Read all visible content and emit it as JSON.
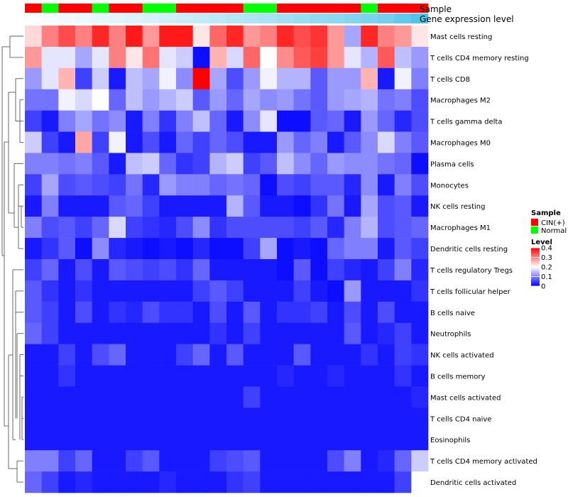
{
  "chart_data": {
    "type": "heatmap",
    "title": "",
    "annotation_tracks": [
      {
        "name": "Sample",
        "values": [
          "CIN(+)",
          "Normal",
          "CIN(+)",
          "CIN(+)",
          "Normal",
          "CIN(+)",
          "CIN(+)",
          "Normal",
          "Normal",
          "CIN(+)",
          "CIN(+)",
          "CIN(+)",
          "CIN(+)",
          "Normal",
          "Normal",
          "CIN(+)",
          "CIN(+)",
          "CIN(+)",
          "CIN(+)",
          "CIN(+)",
          "Normal",
          "CIN(+)",
          "CIN(+)",
          "CIN(+)"
        ]
      },
      {
        "name": "Gene expression level",
        "values": [
          0.02,
          0.05,
          0.08,
          0.11,
          0.14,
          0.17,
          0.2,
          0.23,
          0.27,
          0.3,
          0.34,
          0.38,
          0.42,
          0.46,
          0.5,
          0.54,
          0.58,
          0.62,
          0.66,
          0.7,
          0.75,
          0.8,
          0.9,
          1.0
        ]
      }
    ],
    "rows": [
      "Mast cells resting",
      "T cells CD4 memory resting",
      "T cells CD8",
      "Macrophages M2",
      "T cells gamma delta",
      "Macrophages M0",
      "Plasma cells",
      "Monocytes",
      "NK cells resting",
      "Macrophages M1",
      "Dendritic cells resting",
      "T cells regulatory  Tregs",
      "T cells follicular helper",
      "B cells naive",
      "Neutrophils",
      "NK cells activated",
      "B cells memory",
      "Mast cells activated",
      "T cells CD4 naive",
      "Eosinophils",
      "T cells CD4 memory activated",
      "Dendritic cells activated"
    ],
    "values": [
      [
        0.23,
        0.3,
        0.34,
        0.3,
        0.37,
        0.3,
        0.38,
        0.28,
        0.38,
        0.38,
        0.22,
        0.32,
        0.37,
        0.28,
        0.3,
        0.37,
        0.34,
        0.36,
        0.28,
        0.13,
        0.37,
        0.3,
        0.28,
        0.22
      ],
      [
        0.28,
        0.18,
        0.18,
        0.13,
        0.18,
        0.3,
        0.22,
        0.31,
        0.18,
        0.16,
        0.01,
        0.26,
        0.17,
        0.32,
        0.2,
        0.29,
        0.33,
        0.35,
        0.28,
        0.18,
        0.14,
        0.33,
        0.15,
        0.12
      ],
      [
        0.12,
        0.18,
        0.26,
        0.05,
        0.16,
        0.02,
        0.15,
        0.13,
        0.19,
        0.11,
        0.4,
        0.13,
        0.06,
        0.12,
        0.19,
        0.14,
        0.14,
        0.07,
        0.12,
        0.12,
        0.26,
        0.02,
        0.19,
        0.1
      ],
      [
        0.09,
        0.09,
        0.19,
        0.17,
        0.2,
        0.08,
        0.15,
        0.12,
        0.14,
        0.16,
        0.07,
        0.12,
        0.08,
        0.13,
        0.11,
        0.12,
        0.09,
        0.07,
        0.12,
        0.13,
        0.14,
        0.09,
        0.1,
        0.06
      ],
      [
        0.05,
        0.02,
        0.1,
        0.13,
        0.09,
        0.11,
        0.02,
        0.1,
        0.04,
        0.1,
        0.15,
        0.08,
        0.02,
        0.11,
        0.18,
        0.01,
        0.01,
        0.07,
        0.08,
        0.02,
        0.12,
        0.08,
        0.03,
        0.06
      ],
      [
        0.16,
        0.05,
        0.02,
        0.27,
        0.05,
        0.19,
        0.02,
        0.06,
        0.02,
        0.08,
        0.05,
        0.08,
        0.06,
        0.02,
        0.02,
        0.12,
        0.08,
        0.1,
        0.02,
        0.07,
        0.11,
        0.17,
        0.1,
        0.07
      ],
      [
        0.1,
        0.1,
        0.09,
        0.1,
        0.07,
        0.02,
        0.15,
        0.16,
        0.08,
        0.04,
        0.05,
        0.14,
        0.16,
        0.05,
        0.07,
        0.15,
        0.11,
        0.08,
        0.12,
        0.11,
        0.11,
        0.09,
        0.08,
        0.01
      ],
      [
        0.05,
        0.13,
        0.06,
        0.07,
        0.06,
        0.05,
        0.09,
        0.03,
        0.12,
        0.1,
        0.1,
        0.08,
        0.09,
        0.08,
        0.01,
        0.06,
        0.05,
        0.07,
        0.07,
        0.03,
        0.11,
        0.02,
        0.1,
        0.06
      ],
      [
        0.02,
        0.1,
        0.02,
        0.02,
        0.02,
        0.07,
        0.08,
        0.05,
        0.02,
        0.02,
        0.02,
        0.02,
        0.14,
        0.07,
        0.02,
        0.02,
        0.01,
        0.04,
        0.09,
        0.02,
        0.13,
        0.06,
        0.07,
        0.02
      ],
      [
        0.1,
        0.06,
        0.07,
        0.05,
        0.08,
        0.17,
        0.05,
        0.04,
        0.03,
        0.06,
        0.11,
        0.04,
        0.06,
        0.06,
        0.06,
        0.06,
        0.05,
        0.07,
        0.03,
        0.1,
        0.14,
        0.06,
        0.07,
        0.08
      ],
      [
        0.02,
        0.04,
        0.07,
        0.01,
        0.11,
        0.03,
        0.02,
        0.01,
        0.02,
        0.01,
        0.03,
        0.01,
        0.01,
        0.05,
        0.13,
        0.01,
        0.02,
        0.01,
        0.08,
        0.1,
        0.1,
        0.02,
        0.07,
        0.05
      ],
      [
        0.05,
        0.08,
        0.02,
        0.06,
        0.02,
        0.07,
        0.06,
        0.05,
        0.06,
        0.04,
        0.08,
        0.02,
        0.02,
        0.02,
        0.02,
        0.01,
        0.07,
        0.01,
        0.05,
        0.03,
        0.02,
        0.05,
        0.1,
        0.03
      ],
      [
        0.07,
        0.04,
        0.02,
        0.04,
        0.02,
        0.02,
        0.02,
        0.02,
        0.02,
        0.02,
        0.05,
        0.07,
        0.05,
        0.02,
        0.02,
        0.02,
        0.05,
        0.02,
        0.01,
        0.12,
        0.02,
        0.02,
        0.02,
        0.04
      ],
      [
        0.07,
        0.05,
        0.02,
        0.06,
        0.02,
        0.04,
        0.03,
        0.06,
        0.04,
        0.04,
        0.02,
        0.06,
        0.02,
        0.07,
        0.02,
        0.04,
        0.04,
        0.05,
        0.02,
        0.06,
        0.02,
        0.06,
        0.02,
        0.02
      ],
      [
        0.08,
        0.05,
        0.02,
        0.02,
        0.02,
        0.02,
        0.02,
        0.02,
        0.02,
        0.02,
        0.02,
        0.04,
        0.02,
        0.05,
        0.02,
        0.02,
        0.02,
        0.02,
        0.02,
        0.07,
        0.02,
        0.03,
        0.05,
        0.02
      ],
      [
        0.02,
        0.02,
        0.05,
        0.02,
        0.06,
        0.08,
        0.02,
        0.02,
        0.02,
        0.05,
        0.08,
        0.02,
        0.07,
        0.02,
        0.02,
        0.02,
        0.07,
        0.02,
        0.02,
        0.02,
        0.04,
        0.02,
        0.05,
        0.04
      ],
      [
        0.02,
        0.02,
        0.04,
        0.02,
        0.02,
        0.02,
        0.02,
        0.02,
        0.02,
        0.02,
        0.02,
        0.02,
        0.02,
        0.02,
        0.02,
        0.03,
        0.02,
        0.02,
        0.03,
        0.02,
        0.02,
        0.02,
        0.04,
        0.02
      ],
      [
        0.02,
        0.02,
        0.02,
        0.02,
        0.02,
        0.02,
        0.02,
        0.02,
        0.02,
        0.02,
        0.02,
        0.02,
        0.02,
        0.05,
        0.02,
        0.02,
        0.02,
        0.02,
        0.02,
        0.02,
        0.02,
        0.02,
        0.02,
        0.03
      ],
      [
        0.02,
        0.02,
        0.02,
        0.02,
        0.02,
        0.02,
        0.02,
        0.02,
        0.02,
        0.02,
        0.02,
        0.02,
        0.02,
        0.02,
        0.02,
        0.02,
        0.02,
        0.02,
        0.02,
        0.02,
        0.02,
        0.02,
        0.02,
        0.02
      ],
      [
        0.02,
        0.02,
        0.02,
        0.02,
        0.02,
        0.02,
        0.02,
        0.02,
        0.02,
        0.02,
        0.02,
        0.02,
        0.02,
        0.02,
        0.02,
        0.02,
        0.02,
        0.02,
        0.02,
        0.02,
        0.02,
        0.02,
        0.02,
        0.02
      ],
      [
        0.1,
        0.1,
        0.05,
        0.08,
        0.02,
        0.02,
        0.05,
        0.07,
        0.02,
        0.02,
        0.02,
        0.05,
        0.06,
        0.07,
        0.02,
        0.02,
        0.02,
        0.02,
        0.06,
        0.1,
        0.02,
        0.03,
        0.08,
        0.16
      ],
      [
        0.08,
        0.05,
        0.02,
        0.03,
        0.02,
        0.02,
        0.02,
        0.02,
        0.03,
        0.02,
        0.02,
        0.02,
        0.04,
        0.05,
        0.02,
        0.02,
        0.02,
        0.02,
        0.02,
        0.02,
        0.02,
        0.02,
        0.05,
        0.2
      ]
    ],
    "color_scale": {
      "min": 0,
      "mid": 0.2,
      "max": 0.4,
      "low_color": "#0000ff",
      "mid_color": "#ffffff",
      "high_color": "#ff0000"
    },
    "legends": {
      "sample": {
        "title": "Sample",
        "entries": [
          {
            "label": "CIN(+)",
            "color": "#ff0000"
          },
          {
            "label": "Normal",
            "color": "#00ff00"
          }
        ]
      },
      "level": {
        "title": "Level",
        "ticks": [
          "0.4",
          "0.3",
          "0.2",
          "0.1",
          "0"
        ]
      }
    },
    "gene_level_colors": [
      "#ffffff",
      "#4fc4ea"
    ],
    "row_dendrogram": true
  }
}
